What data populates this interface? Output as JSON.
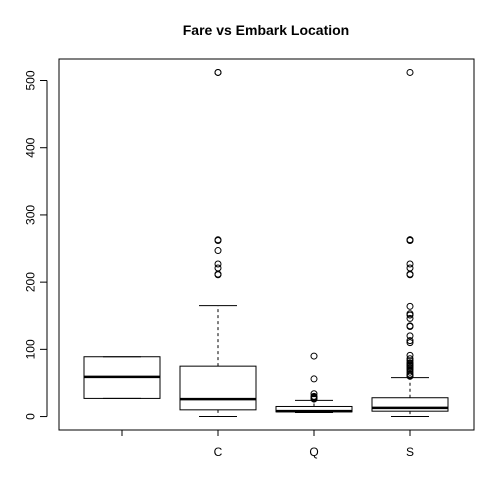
{
  "chart_data": {
    "type": "box",
    "title": "Fare vs Embark Location",
    "xlabel": "",
    "ylabel": "",
    "categories": [
      "",
      "C",
      "Q",
      "S"
    ],
    "ylim": [
      -20,
      532
    ],
    "yticks": [
      0,
      100,
      200,
      300,
      400,
      500
    ],
    "grid": false,
    "series": [
      {
        "category": "",
        "min": 27,
        "q1": 27,
        "median": 59,
        "q3": 89,
        "max": 89,
        "outliers": []
      },
      {
        "category": "C",
        "min": 0,
        "q1": 10,
        "median": 26,
        "q3": 75,
        "max": 165,
        "outliers": [
          512,
          512,
          263,
          262,
          247,
          227,
          221,
          212,
          211
        ]
      },
      {
        "category": "Q",
        "min": 6,
        "q1": 7,
        "median": 8,
        "q3": 15,
        "max": 24,
        "outliers": [
          90,
          56,
          34,
          30,
          29,
          29,
          28,
          27,
          26
        ]
      },
      {
        "category": "S",
        "min": 0,
        "q1": 8,
        "median": 13,
        "q3": 28,
        "max": 58,
        "outliers": [
          512,
          263,
          263,
          262,
          227,
          221,
          212,
          211,
          164,
          153,
          151,
          146,
          135,
          134,
          120,
          113,
          110,
          91,
          86,
          83,
          80,
          79,
          77,
          76,
          75,
          73,
          71,
          69,
          66,
          63,
          61,
          60
        ]
      }
    ]
  }
}
